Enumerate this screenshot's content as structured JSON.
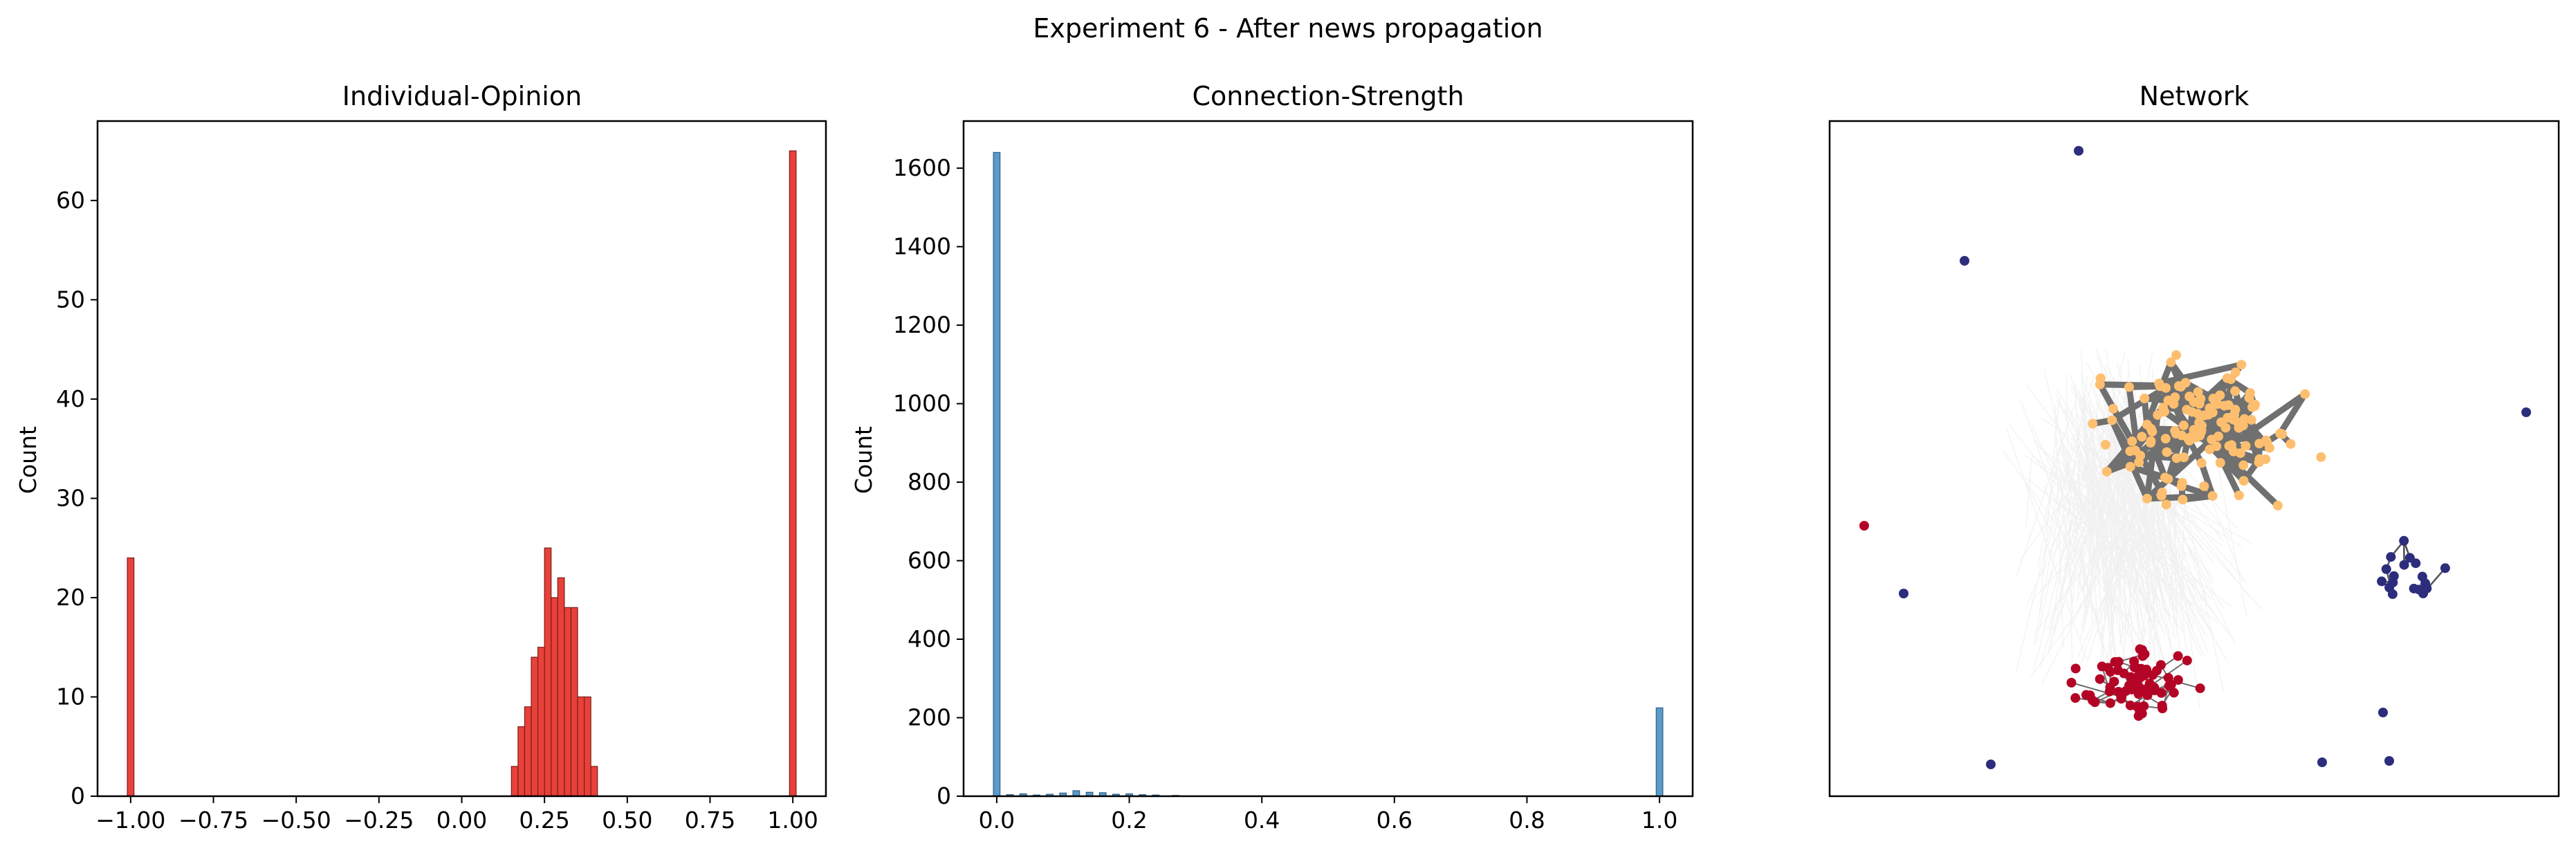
{
  "suptitle": "Experiment 6 - After news propagation",
  "chart_data": [
    {
      "type": "histogram",
      "title": "Individual-Opinion",
      "xlabel": "",
      "ylabel": "Count",
      "xlim": [
        -1.1,
        1.1
      ],
      "ylim": [
        0,
        68
      ],
      "xticks": [
        -1.0,
        -0.75,
        -0.5,
        -0.25,
        0.0,
        0.25,
        0.5,
        0.75,
        1.0
      ],
      "xtick_labels": [
        "−1.00",
        "−0.75",
        "−0.50",
        "−0.25",
        "0.00",
        "0.25",
        "0.50",
        "0.75",
        "1.00"
      ],
      "yticks": [
        0,
        10,
        20,
        30,
        40,
        50,
        60
      ],
      "ytick_labels": [
        "0",
        "10",
        "20",
        "30",
        "40",
        "50",
        "60"
      ],
      "bin_width": 0.02,
      "bins": [
        {
          "x": -1.0,
          "count": 24
        },
        {
          "x": 0.16,
          "count": 3
        },
        {
          "x": 0.18,
          "count": 7
        },
        {
          "x": 0.2,
          "count": 9
        },
        {
          "x": 0.22,
          "count": 14
        },
        {
          "x": 0.24,
          "count": 15
        },
        {
          "x": 0.26,
          "count": 25
        },
        {
          "x": 0.28,
          "count": 20
        },
        {
          "x": 0.3,
          "count": 22
        },
        {
          "x": 0.32,
          "count": 19
        },
        {
          "x": 0.34,
          "count": 19
        },
        {
          "x": 0.36,
          "count": 10
        },
        {
          "x": 0.38,
          "count": 10
        },
        {
          "x": 0.4,
          "count": 3
        },
        {
          "x": 1.0,
          "count": 65
        }
      ],
      "colors": {
        "fill": "#e8413a",
        "edge": "#7a1c18"
      }
    },
    {
      "type": "histogram",
      "title": "Connection-Strength",
      "xlabel": "",
      "ylabel": "Count",
      "xlim": [
        -0.05,
        1.05
      ],
      "ylim": [
        0,
        1720
      ],
      "xticks": [
        0.0,
        0.2,
        0.4,
        0.6,
        0.8,
        1.0
      ],
      "xtick_labels": [
        "0.0",
        "0.2",
        "0.4",
        "0.6",
        "0.8",
        "1.0"
      ],
      "yticks": [
        0,
        200,
        400,
        600,
        800,
        1000,
        1200,
        1400,
        1600
      ],
      "ytick_labels": [
        "0",
        "200",
        "400",
        "600",
        "800",
        "1000",
        "1200",
        "1400",
        "1600"
      ],
      "bin_width": 0.01,
      "bins": [
        {
          "x": 0.0,
          "count": 1640
        },
        {
          "x": 0.02,
          "count": 4
        },
        {
          "x": 0.04,
          "count": 6
        },
        {
          "x": 0.06,
          "count": 3
        },
        {
          "x": 0.08,
          "count": 5
        },
        {
          "x": 0.1,
          "count": 8
        },
        {
          "x": 0.12,
          "count": 14
        },
        {
          "x": 0.14,
          "count": 10
        },
        {
          "x": 0.16,
          "count": 9
        },
        {
          "x": 0.18,
          "count": 5
        },
        {
          "x": 0.2,
          "count": 6
        },
        {
          "x": 0.22,
          "count": 4
        },
        {
          "x": 0.24,
          "count": 3
        },
        {
          "x": 0.27,
          "count": 2
        },
        {
          "x": 1.0,
          "count": 225
        }
      ],
      "colors": {
        "fill": "#5b9ac9",
        "edge": "#2f5f85"
      }
    },
    {
      "type": "network",
      "title": "Network",
      "groups": [
        {
          "name": "orange",
          "color": "#fdbf6f",
          "edge_color": "#707070"
        },
        {
          "name": "red",
          "color": "#b40426",
          "edge_color": "#6e6e6e"
        },
        {
          "name": "navy",
          "color": "#2c2d7c",
          "edge_color": "#555555"
        }
      ]
    }
  ]
}
